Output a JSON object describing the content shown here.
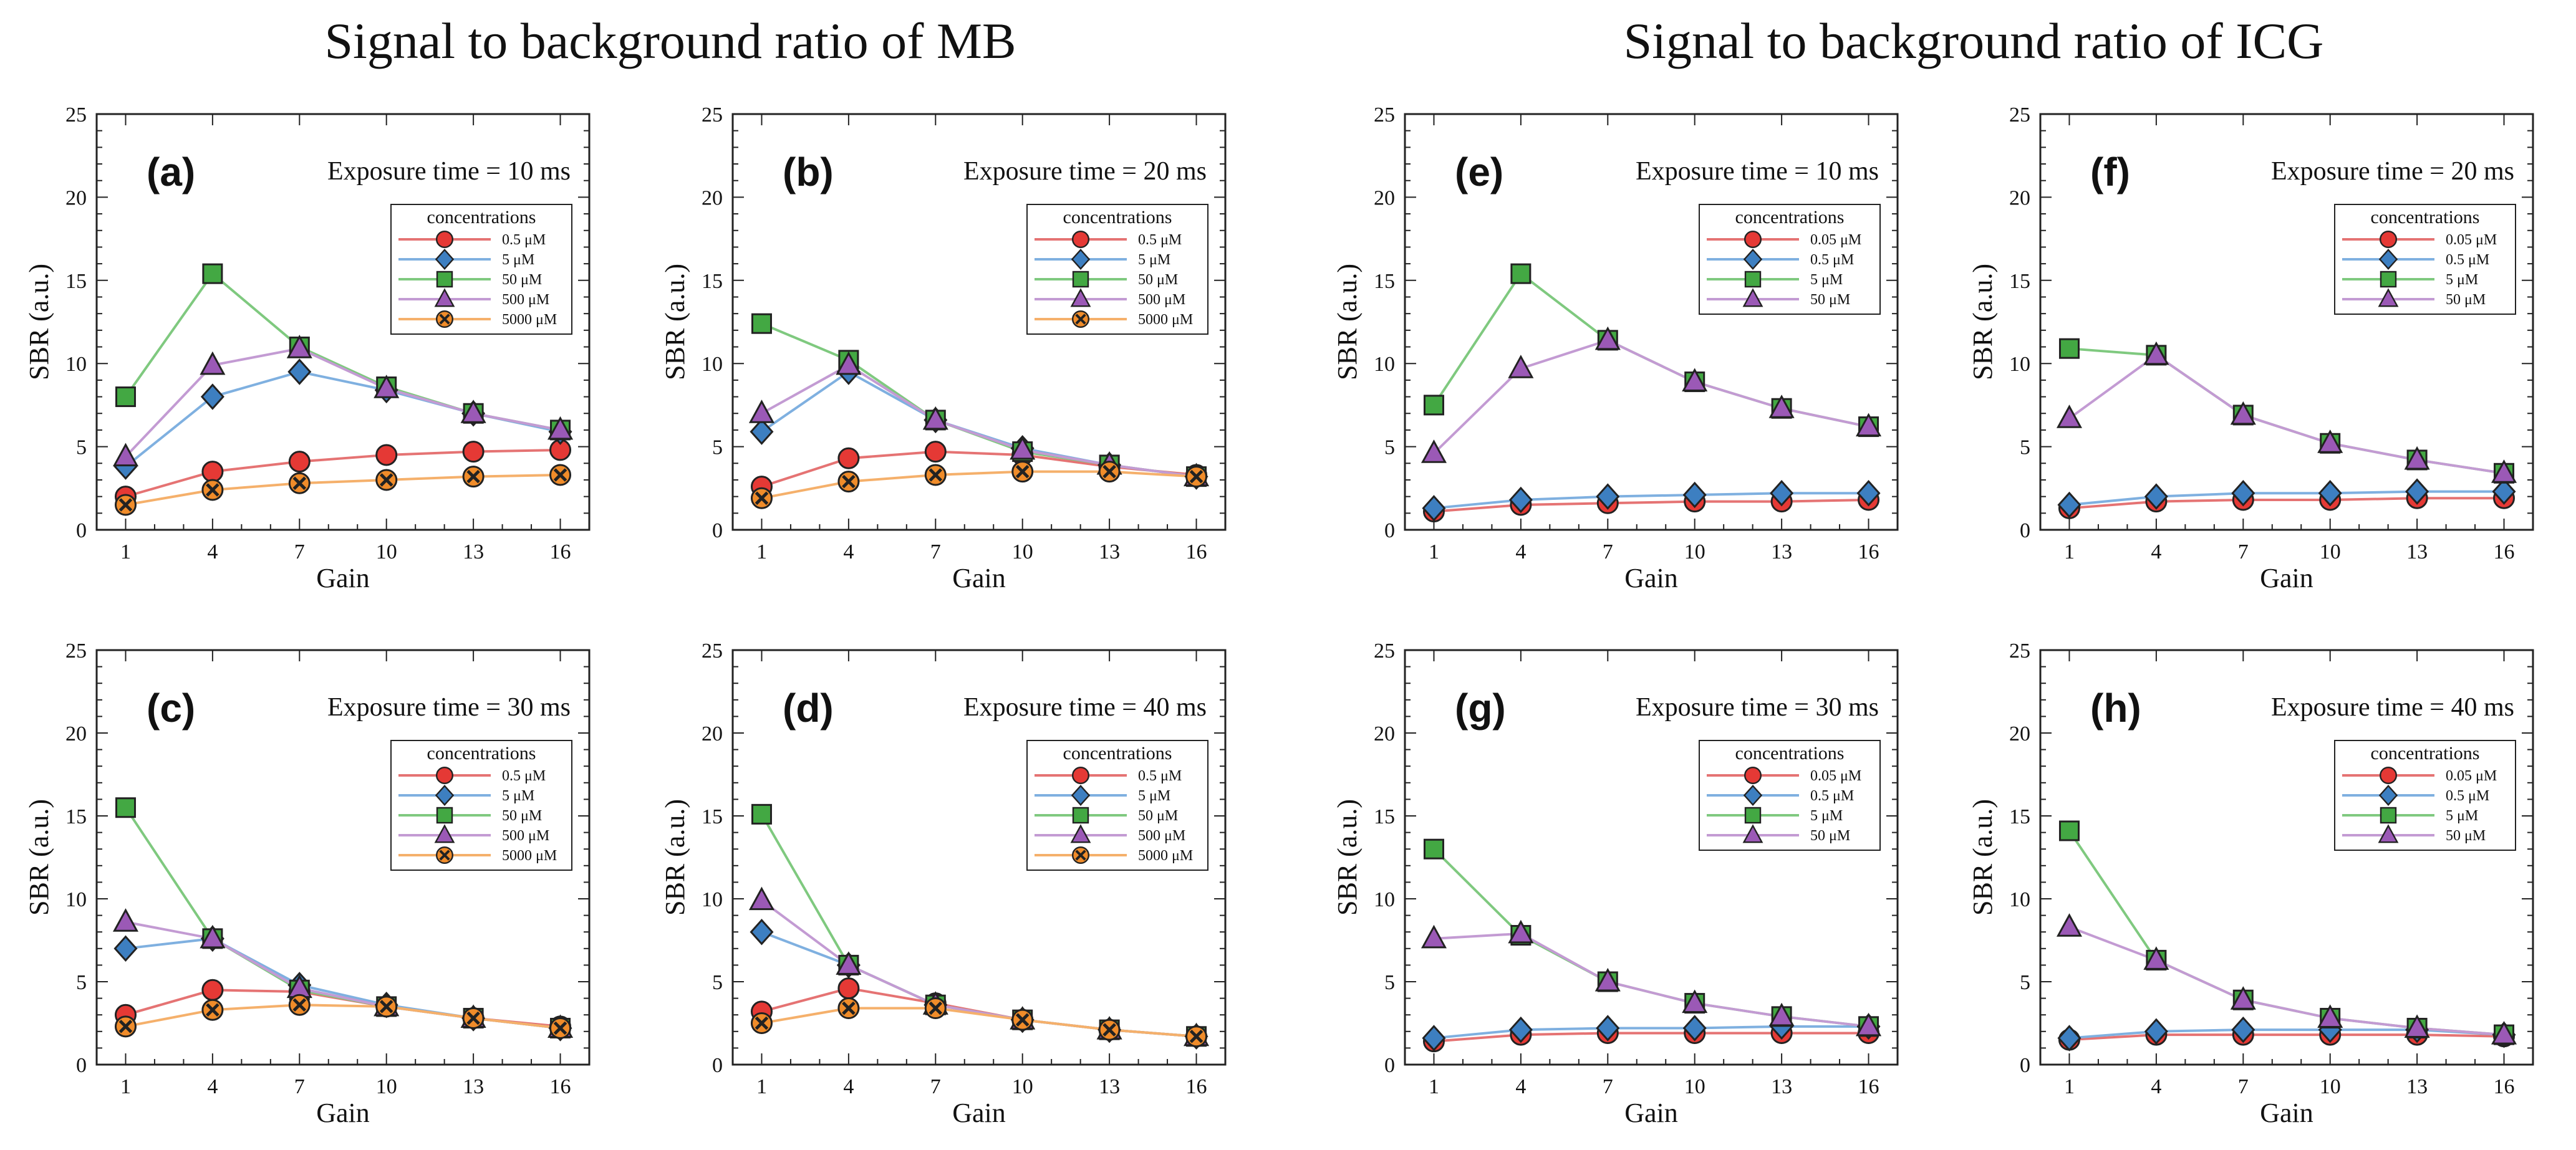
{
  "figure": {
    "title_left": "Signal to background ratio of MB",
    "title_right": "Signal to background ratio of ICG"
  },
  "colors": {
    "red": "#e53935",
    "blue": "#3d7fc1",
    "green": "#43a843",
    "purple": "#9b59b6",
    "orange": "#f08c2a",
    "line_red": "#e57373",
    "line_blue": "#7fb0e0",
    "line_green": "#7fc97f",
    "line_purple": "#c39bd3",
    "line_orange": "#f5b06b"
  },
  "chart_data": [
    {
      "type": "line",
      "panel": "(a)",
      "annotation": "Exposure time = 10 ms",
      "xlabel": "Gain",
      "ylabel": "SBR (a.u.)",
      "x": [
        1,
        4,
        7,
        10,
        13,
        16
      ],
      "xlim": [
        0,
        17
      ],
      "ylim": [
        0,
        25
      ],
      "yticks": [
        0,
        5,
        10,
        15,
        20,
        25
      ],
      "legend_title": "concentrations",
      "series": [
        {
          "name": "0.5 μM",
          "marker": "circle",
          "color": "red",
          "values": [
            2.0,
            3.5,
            4.1,
            4.5,
            4.7,
            4.8
          ]
        },
        {
          "name": "5 μM",
          "marker": "diamond",
          "color": "blue",
          "values": [
            3.8,
            8.0,
            9.5,
            8.4,
            7.0,
            5.9
          ]
        },
        {
          "name": "50 μM",
          "marker": "square",
          "color": "green",
          "values": [
            8.0,
            15.4,
            11.0,
            8.6,
            7.0,
            6.0
          ]
        },
        {
          "name": "500 μM",
          "marker": "triangle",
          "color": "purple",
          "values": [
            4.4,
            9.9,
            10.9,
            8.5,
            7.0,
            6.0
          ]
        },
        {
          "name": "5000 μM",
          "marker": "cross",
          "color": "orange",
          "values": [
            1.5,
            2.4,
            2.8,
            3.0,
            3.2,
            3.3
          ]
        }
      ]
    },
    {
      "type": "line",
      "panel": "(b)",
      "annotation": "Exposure time = 20 ms",
      "xlabel": "Gain",
      "ylabel": "SBR (a.u.)",
      "x": [
        1,
        4,
        7,
        10,
        13,
        16
      ],
      "xlim": [
        0,
        17
      ],
      "ylim": [
        0,
        25
      ],
      "yticks": [
        0,
        5,
        10,
        15,
        20,
        25
      ],
      "legend_title": "concentrations",
      "series": [
        {
          "name": "0.5 μM",
          "marker": "circle",
          "color": "red",
          "values": [
            2.6,
            4.3,
            4.7,
            4.5,
            3.8,
            3.3
          ]
        },
        {
          "name": "5 μM",
          "marker": "diamond",
          "color": "blue",
          "values": [
            5.9,
            9.5,
            6.6,
            4.9,
            3.9,
            3.2
          ]
        },
        {
          "name": "50 μM",
          "marker": "square",
          "color": "green",
          "values": [
            12.4,
            10.2,
            6.6,
            4.7,
            3.9,
            3.2
          ]
        },
        {
          "name": "500 μM",
          "marker": "triangle",
          "color": "purple",
          "values": [
            7.0,
            9.9,
            6.6,
            4.8,
            3.9,
            3.2
          ]
        },
        {
          "name": "5000 μM",
          "marker": "cross",
          "color": "orange",
          "values": [
            1.9,
            2.9,
            3.3,
            3.5,
            3.5,
            3.2
          ]
        }
      ]
    },
    {
      "type": "line",
      "panel": "(c)",
      "annotation": "Exposure time = 30 ms",
      "xlabel": "Gain",
      "ylabel": "SBR (a.u.)",
      "x": [
        1,
        4,
        7,
        10,
        13,
        16
      ],
      "xlim": [
        0,
        17
      ],
      "ylim": [
        0,
        25
      ],
      "yticks": [
        0,
        5,
        10,
        15,
        20,
        25
      ],
      "legend_title": "concentrations",
      "series": [
        {
          "name": "0.5 μM",
          "marker": "circle",
          "color": "red",
          "values": [
            3.0,
            4.5,
            4.4,
            3.5,
            2.8,
            2.3
          ]
        },
        {
          "name": "5 μM",
          "marker": "diamond",
          "color": "blue",
          "values": [
            7.0,
            7.6,
            4.8,
            3.6,
            2.8,
            2.2
          ]
        },
        {
          "name": "50 μM",
          "marker": "square",
          "color": "green",
          "values": [
            15.5,
            7.6,
            4.5,
            3.5,
            2.8,
            2.2
          ]
        },
        {
          "name": "500 μM",
          "marker": "triangle",
          "color": "purple",
          "values": [
            8.6,
            7.6,
            4.6,
            3.5,
            2.8,
            2.2
          ]
        },
        {
          "name": "5000 μM",
          "marker": "cross",
          "color": "orange",
          "values": [
            2.3,
            3.3,
            3.6,
            3.5,
            2.8,
            2.2
          ]
        }
      ]
    },
    {
      "type": "line",
      "panel": "(d)",
      "annotation": "Exposure time = 40 ms",
      "xlabel": "Gain",
      "ylabel": "SBR (a.u.)",
      "x": [
        1,
        4,
        7,
        10,
        13,
        16
      ],
      "xlim": [
        0,
        17
      ],
      "ylim": [
        0,
        25
      ],
      "yticks": [
        0,
        5,
        10,
        15,
        20,
        25
      ],
      "legend_title": "concentrations",
      "series": [
        {
          "name": "0.5 μM",
          "marker": "circle",
          "color": "red",
          "values": [
            3.2,
            4.6,
            3.7,
            2.7,
            2.1,
            1.7
          ]
        },
        {
          "name": "5 μM",
          "marker": "diamond",
          "color": "blue",
          "values": [
            8.0,
            6.0,
            3.6,
            2.7,
            2.1,
            1.7
          ]
        },
        {
          "name": "50 μM",
          "marker": "square",
          "color": "green",
          "values": [
            15.1,
            6.0,
            3.6,
            2.7,
            2.1,
            1.7
          ]
        },
        {
          "name": "500 μM",
          "marker": "triangle",
          "color": "purple",
          "values": [
            9.9,
            6.0,
            3.6,
            2.7,
            2.1,
            1.7
          ]
        },
        {
          "name": "5000 μM",
          "marker": "cross",
          "color": "orange",
          "values": [
            2.5,
            3.4,
            3.4,
            2.7,
            2.1,
            1.7
          ]
        }
      ]
    },
    {
      "type": "line",
      "panel": "(e)",
      "annotation": "Exposure time = 10 ms",
      "xlabel": "Gain",
      "ylabel": "SBR (a.u.)",
      "x": [
        1,
        4,
        7,
        10,
        13,
        16
      ],
      "xlim": [
        0,
        17
      ],
      "ylim": [
        0,
        25
      ],
      "yticks": [
        0,
        5,
        10,
        15,
        20,
        25
      ],
      "legend_title": "concentrations",
      "series": [
        {
          "name": "0.05 μM",
          "marker": "circle",
          "color": "red",
          "values": [
            1.1,
            1.5,
            1.6,
            1.7,
            1.7,
            1.8
          ]
        },
        {
          "name": "0.5 μM",
          "marker": "diamond",
          "color": "blue",
          "values": [
            1.3,
            1.8,
            2.0,
            2.1,
            2.2,
            2.2
          ]
        },
        {
          "name": "5 μM",
          "marker": "square",
          "color": "green",
          "values": [
            7.5,
            15.4,
            11.4,
            8.9,
            7.3,
            6.2
          ]
        },
        {
          "name": "50 μM",
          "marker": "triangle",
          "color": "purple",
          "values": [
            4.6,
            9.7,
            11.4,
            8.9,
            7.3,
            6.2
          ]
        }
      ]
    },
    {
      "type": "line",
      "panel": "(f)",
      "annotation": "Exposure time = 20 ms",
      "xlabel": "Gain",
      "ylabel": "SBR (a.u.)",
      "x": [
        1,
        4,
        7,
        10,
        13,
        16
      ],
      "xlim": [
        0,
        17
      ],
      "ylim": [
        0,
        25
      ],
      "yticks": [
        0,
        5,
        10,
        15,
        20,
        25
      ],
      "legend_title": "concentrations",
      "series": [
        {
          "name": "0.05 μM",
          "marker": "circle",
          "color": "red",
          "values": [
            1.3,
            1.7,
            1.8,
            1.8,
            1.9,
            1.9
          ]
        },
        {
          "name": "0.5 μM",
          "marker": "diamond",
          "color": "blue",
          "values": [
            1.5,
            2.0,
            2.2,
            2.2,
            2.3,
            2.3
          ]
        },
        {
          "name": "5 μM",
          "marker": "square",
          "color": "green",
          "values": [
            10.9,
            10.5,
            6.9,
            5.2,
            4.2,
            3.4
          ]
        },
        {
          "name": "50 μM",
          "marker": "triangle",
          "color": "purple",
          "values": [
            6.7,
            10.5,
            6.9,
            5.2,
            4.2,
            3.4
          ]
        }
      ]
    },
    {
      "type": "line",
      "panel": "(g)",
      "annotation": "Exposure time = 30 ms",
      "xlabel": "Gain",
      "ylabel": "SBR (a.u.)",
      "x": [
        1,
        4,
        7,
        10,
        13,
        16
      ],
      "xlim": [
        0,
        17
      ],
      "ylim": [
        0,
        25
      ],
      "yticks": [
        0,
        5,
        10,
        15,
        20,
        25
      ],
      "legend_title": "concentrations",
      "series": [
        {
          "name": "0.05 μM",
          "marker": "circle",
          "color": "red",
          "values": [
            1.4,
            1.8,
            1.9,
            1.9,
            1.9,
            1.9
          ]
        },
        {
          "name": "0.5 μM",
          "marker": "diamond",
          "color": "blue",
          "values": [
            1.6,
            2.1,
            2.2,
            2.2,
            2.3,
            2.3
          ]
        },
        {
          "name": "5 μM",
          "marker": "square",
          "color": "green",
          "values": [
            13.0,
            7.8,
            5.0,
            3.7,
            2.9,
            2.3
          ]
        },
        {
          "name": "50 μM",
          "marker": "triangle",
          "color": "purple",
          "values": [
            7.6,
            7.9,
            5.0,
            3.7,
            2.9,
            2.3
          ]
        }
      ]
    },
    {
      "type": "line",
      "panel": "(h)",
      "annotation": "Exposure time = 40 ms",
      "xlabel": "Gain",
      "ylabel": "SBR (a.u.)",
      "x": [
        1,
        4,
        7,
        10,
        13,
        16
      ],
      "xlim": [
        0,
        17
      ],
      "ylim": [
        0,
        25
      ],
      "yticks": [
        0,
        5,
        10,
        15,
        20,
        25
      ],
      "legend_title": "concentrations",
      "series": [
        {
          "name": "0.05 μM",
          "marker": "circle",
          "color": "red",
          "values": [
            1.5,
            1.8,
            1.8,
            1.8,
            1.8,
            1.7
          ]
        },
        {
          "name": "0.5 μM",
          "marker": "diamond",
          "color": "blue",
          "values": [
            1.6,
            2.0,
            2.1,
            2.1,
            2.1,
            1.8
          ]
        },
        {
          "name": "5 μM",
          "marker": "square",
          "color": "green",
          "values": [
            14.1,
            6.3,
            3.9,
            2.8,
            2.2,
            1.8
          ]
        },
        {
          "name": "50 μM",
          "marker": "triangle",
          "color": "purple",
          "values": [
            8.3,
            6.3,
            3.9,
            2.8,
            2.2,
            1.8
          ]
        }
      ]
    }
  ]
}
